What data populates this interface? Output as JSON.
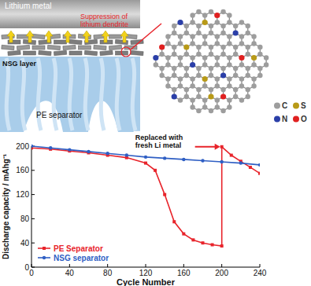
{
  "chart_data": {
    "type": "line",
    "x_label": "Cycle Number",
    "y_label": "Discharge capacity / mAhg⁻¹",
    "xlim": [
      0,
      240
    ],
    "xticks": [
      0,
      40,
      80,
      120,
      160,
      200,
      240
    ],
    "ylim": [
      0,
      200
    ],
    "yticks": [
      0,
      40,
      80,
      120,
      160,
      200
    ],
    "legend": "lower left",
    "annotation": "Replaced with fresh Li metal",
    "series": [
      {
        "name": "PE Separator",
        "color": "#e8242b",
        "marker": "square",
        "x": [
          0,
          20,
          40,
          60,
          80,
          100,
          120,
          130,
          140,
          150,
          160,
          170,
          180,
          190,
          200,
          200,
          210,
          220,
          230,
          240
        ],
        "values": [
          197,
          195,
          192,
          189,
          185,
          181,
          172,
          160,
          120,
          75,
          55,
          45,
          40,
          37,
          35,
          199,
          185,
          175,
          165,
          155
        ]
      },
      {
        "name": "NSG separator",
        "color": "#2f5fc4",
        "marker": "circle",
        "x": [
          0,
          20,
          40,
          60,
          80,
          100,
          120,
          140,
          160,
          180,
          200,
          220,
          240
        ],
        "values": [
          200,
          197,
          194,
          191,
          188,
          185,
          182,
          180,
          178,
          176,
          174,
          172,
          169
        ]
      }
    ]
  },
  "diagram": {
    "lithium_label": "Lithium metal",
    "suppression_label": "Suppression of lithium dendrite",
    "layer_label": "NSG layer",
    "separator_label": "PE separator",
    "atom_legend": [
      "C",
      "S",
      "N",
      "O"
    ]
  }
}
